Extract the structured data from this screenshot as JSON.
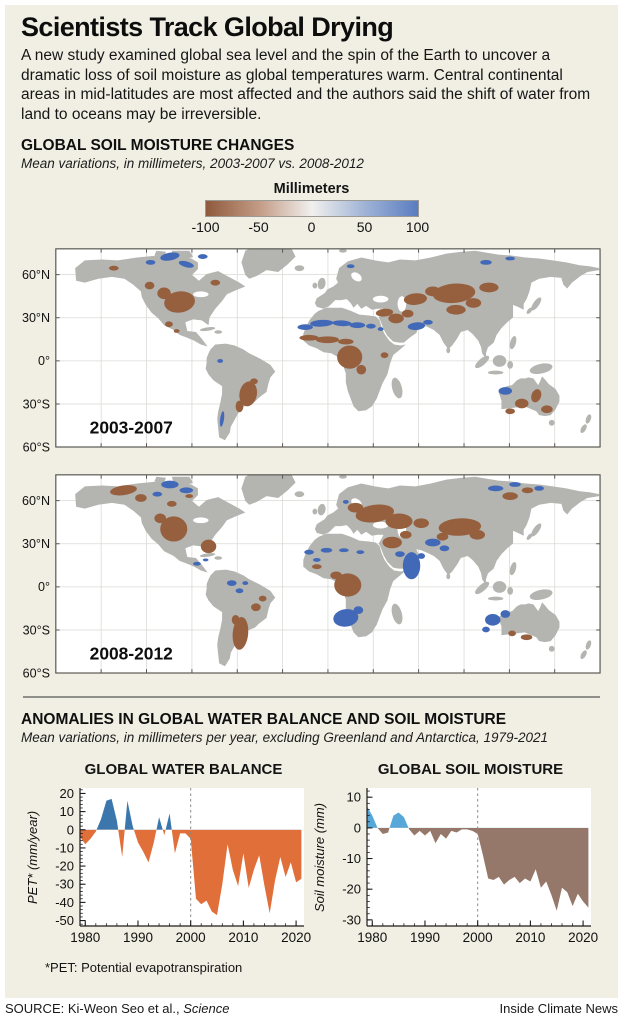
{
  "page": {
    "title": "Scientists Track Global Drying",
    "intro": "A new study examined global sea level and the spin of the Earth to uncover a dramatic loss of soil moisture as global temperatures warm. Central continental areas in mid-latitudes are most affected and the authors said the shift of water from land to oceans may be irreversible."
  },
  "maps_section": {
    "heading": "GLOBAL SOIL MOISTURE CHANGES",
    "subtitle": "Mean variations, in millimeters, 2003-2007 vs. 2008-2012",
    "colorbar": {
      "title": "Millimeters",
      "ticks": [
        "-100",
        "-50",
        "0",
        "50",
        "100"
      ],
      "stops": [
        "#8f5a3d",
        "#c39b85",
        "#f1f0ee",
        "#9fb3d6",
        "#5a7cc0"
      ]
    },
    "maps": [
      {
        "label": "2003-2007",
        "lat_ticks": [
          "60°N",
          "30°N",
          "0°",
          "30°S",
          "60°S"
        ]
      },
      {
        "label": "2008-2012",
        "lat_ticks": [
          "60°N",
          "30°N",
          "0°",
          "30°S",
          "60°S"
        ]
      }
    ],
    "colors": {
      "land": "#b4b4b1",
      "drier": "#96603f",
      "wetter": "#4169b8",
      "ocean": "#ffffff"
    }
  },
  "charts_section": {
    "heading": "ANOMALIES IN GLOBAL WATER BALANCE AND SOIL MOISTURE",
    "subtitle": "Mean variations, in millimeters per year, excluding Greenland and Antarctica, 1979-2021",
    "footnote": "*PET: Potential evapotranspiration"
  },
  "chart_data": [
    {
      "type": "area",
      "title": "GLOBAL WATER BALANCE",
      "ylabel": "PET* (mm/year)",
      "x": [
        1979,
        1980,
        1981,
        1982,
        1983,
        1984,
        1985,
        1986,
        1987,
        1988,
        1989,
        1990,
        1991,
        1992,
        1993,
        1994,
        1995,
        1996,
        1997,
        1998,
        1999,
        2000,
        2001,
        2002,
        2003,
        2004,
        2005,
        2006,
        2007,
        2008,
        2009,
        2010,
        2011,
        2012,
        2013,
        2014,
        2015,
        2016,
        2017,
        2018,
        2019,
        2020,
        2021
      ],
      "values": [
        -4,
        -8,
        -5,
        -1,
        6,
        16,
        17,
        5,
        -15,
        16,
        2,
        -7,
        -12,
        -18,
        -7,
        7,
        -3,
        9,
        -13,
        -2,
        -2,
        -5,
        -38,
        -41,
        -39,
        -45,
        -47,
        -30,
        -8,
        -22,
        -31,
        -13,
        -32,
        -22,
        -14,
        -31,
        -46,
        -28,
        -15,
        -26,
        -18,
        -29,
        -27
      ],
      "xlim": [
        1979,
        2021.5
      ],
      "ylim": [
        -53,
        23
      ],
      "yticks": [
        20,
        10,
        0,
        -10,
        -20,
        -30,
        -40,
        -50
      ],
      "xticks": [
        1980,
        1990,
        2000,
        2010,
        2020
      ],
      "vline_x": 2000,
      "positive_color": "#3b77ad",
      "negative_color": "#e06f3a",
      "grid": false,
      "legend": "none"
    },
    {
      "type": "area",
      "title": "GLOBAL SOIL MOISTURE",
      "ylabel": "Soil moisture (mm)",
      "x": [
        1979,
        1980,
        1981,
        1982,
        1983,
        1984,
        1985,
        1986,
        1987,
        1988,
        1989,
        1990,
        1991,
        1992,
        1993,
        1994,
        1995,
        1996,
        1997,
        1998,
        1999,
        2000,
        2001,
        2002,
        2003,
        2004,
        2005,
        2006,
        2007,
        2008,
        2009,
        2010,
        2011,
        2012,
        2013,
        2014,
        2015,
        2016,
        2017,
        2018,
        2019,
        2020,
        2021
      ],
      "values": [
        7,
        4,
        0,
        -2,
        -1.5,
        4,
        5,
        3.5,
        -0.5,
        -2.5,
        -1,
        -2.5,
        -1,
        -5,
        -2,
        -3.5,
        -1,
        -1.5,
        -0.5,
        -0.5,
        -1,
        -2,
        -9,
        -16.5,
        -17,
        -16,
        -18.5,
        -17,
        -16,
        -18,
        -16.5,
        -17.5,
        -13.5,
        -19.5,
        -17.5,
        -22,
        -27,
        -19.5,
        -21,
        -25.5,
        -21.5,
        -24,
        -26
      ],
      "xlim": [
        1979,
        2021.5
      ],
      "ylim": [
        -32,
        13
      ],
      "yticks": [
        10,
        0,
        -10,
        -20,
        -30
      ],
      "xticks": [
        1980,
        1990,
        2000,
        2010,
        2020
      ],
      "vline_x": 2000,
      "positive_color": "#57a8d9",
      "negative_color": "#96786a",
      "grid": false,
      "legend": "none"
    },
    {
      "type": "choropleth_map",
      "title": "2003-2007",
      "legend_label": "Millimeters",
      "legend_range": [
        -100,
        100
      ],
      "lat_ticks": [
        "60°N",
        "30°N",
        "0°",
        "30°S",
        "60°S"
      ]
    },
    {
      "type": "choropleth_map",
      "title": "2008-2012",
      "legend_label": "Millimeters",
      "legend_range": [
        -100,
        100
      ],
      "lat_ticks": [
        "60°N",
        "30°N",
        "0°",
        "30°S",
        "60°S"
      ]
    }
  ],
  "footer": {
    "source_prefix": "SOURCE: Ki-Weon Seo et al., ",
    "source_journal": "Science",
    "credit": "Inside Climate News"
  }
}
